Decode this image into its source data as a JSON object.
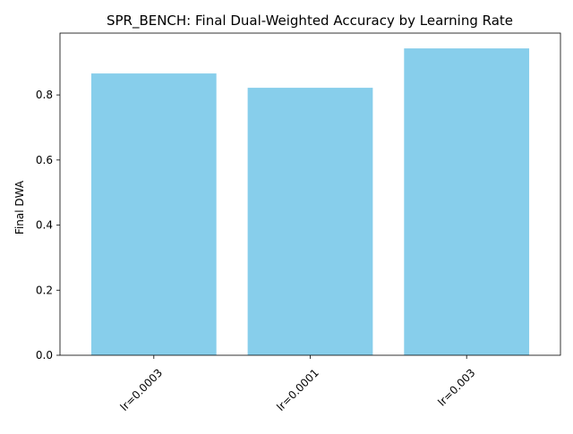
{
  "chart_data": {
    "type": "bar",
    "title": "SPR_BENCH: Final Dual-Weighted Accuracy by Learning Rate",
    "xlabel": "",
    "ylabel": "Final DWA",
    "categories": [
      "lr=0.0003",
      "lr=0.0001",
      "lr=0.003"
    ],
    "values": [
      0.866,
      0.822,
      0.943
    ],
    "ylim": [
      0,
      0.99
    ],
    "yticks": [
      0.0,
      0.2,
      0.4,
      0.6,
      0.8
    ],
    "ytick_labels": [
      "0.0",
      "0.2",
      "0.4",
      "0.6",
      "0.8"
    ],
    "bar_color": "#87ceeb",
    "grid": false,
    "legend": "none"
  }
}
